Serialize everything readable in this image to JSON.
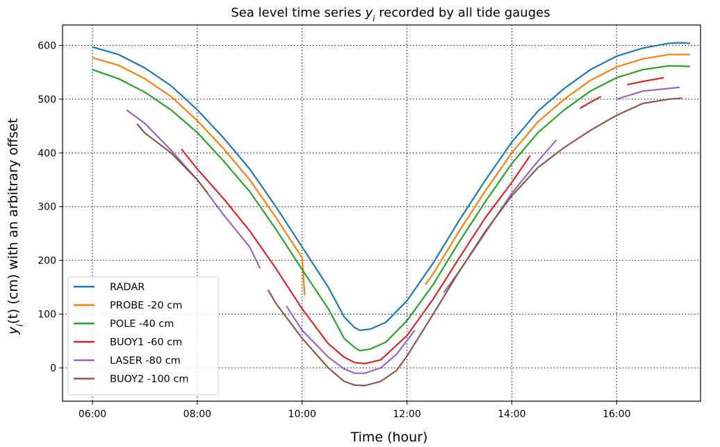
{
  "chart_data": {
    "type": "line",
    "title": "Sea level time series y_i recorded by all tide gauges",
    "title_prefix": "Sea level time series ",
    "title_symbol": "y",
    "title_subscript": "i",
    "title_suffix": " recorded by all tide gauges",
    "xlabel": "Time (hour)",
    "ylabel": "y_i(t) (cm) with an arbitrary offset",
    "ylabel_parts": {
      "symbol": "y",
      "subscript": "i",
      "rest": "(t) (cm) with an arbitrary offset"
    },
    "xlim": [
      5.43,
      17.6
    ],
    "ylim": [
      -62,
      638
    ],
    "x_ticks": [
      {
        "value": 6,
        "label": "06:00"
      },
      {
        "value": 8,
        "label": "08:00"
      },
      {
        "value": 10,
        "label": "10:00"
      },
      {
        "value": 12,
        "label": "12:00"
      },
      {
        "value": 14,
        "label": "14:00"
      },
      {
        "value": 16,
        "label": "16:00"
      }
    ],
    "y_ticks": [
      {
        "value": 0,
        "label": "0"
      },
      {
        "value": 100,
        "label": "100"
      },
      {
        "value": 200,
        "label": "200"
      },
      {
        "value": 300,
        "label": "300"
      },
      {
        "value": 400,
        "label": "400"
      },
      {
        "value": 500,
        "label": "500"
      },
      {
        "value": 600,
        "label": "600"
      }
    ],
    "grid": true,
    "grid_style": "dotted",
    "legend_position": "lower-left",
    "series": [
      {
        "name": "RADAR",
        "color": "#1f77b4",
        "segments": [
          [
            [
              6.0,
              597
            ],
            [
              6.5,
              583
            ],
            [
              7.0,
              558
            ],
            [
              7.5,
              525
            ],
            [
              8.0,
              480
            ],
            [
              8.5,
              428
            ],
            [
              9.0,
              370
            ],
            [
              9.5,
              300
            ],
            [
              10.0,
              225
            ],
            [
              10.5,
              150
            ],
            [
              10.8,
              95
            ],
            [
              11.0,
              75
            ],
            [
              11.1,
              70
            ],
            [
              11.3,
              72
            ],
            [
              11.6,
              85
            ],
            [
              12.0,
              125
            ],
            [
              12.5,
              195
            ],
            [
              13.0,
              275
            ],
            [
              13.5,
              350
            ],
            [
              14.0,
              420
            ],
            [
              14.5,
              478
            ],
            [
              15.0,
              520
            ],
            [
              15.5,
              555
            ],
            [
              16.0,
              580
            ],
            [
              16.5,
              595
            ],
            [
              17.0,
              604
            ],
            [
              17.2,
              605
            ],
            [
              17.4,
              604
            ]
          ]
        ]
      },
      {
        "name": "PROBE -20 cm",
        "color": "#ff7f0e",
        "segments": [
          [
            [
              6.0,
              577
            ],
            [
              6.5,
              563
            ],
            [
              7.0,
              538
            ],
            [
              7.5,
              505
            ],
            [
              8.0,
              460
            ],
            [
              8.5,
              408
            ],
            [
              9.0,
              350
            ],
            [
              9.5,
              280
            ],
            [
              10.0,
              205
            ],
            [
              10.05,
              135
            ]
          ],
          [
            [
              12.35,
              155
            ],
            [
              12.5,
              175
            ],
            [
              13.0,
              255
            ],
            [
              13.5,
              330
            ],
            [
              14.0,
              400
            ],
            [
              14.5,
              458
            ],
            [
              15.0,
              500
            ],
            [
              15.5,
              535
            ],
            [
              16.0,
              560
            ],
            [
              16.5,
              575
            ],
            [
              17.0,
              583
            ],
            [
              17.4,
              583
            ]
          ]
        ]
      },
      {
        "name": "POLE -40 cm",
        "color": "#2ca02c",
        "segments": [
          [
            [
              6.0,
              555
            ],
            [
              6.5,
              538
            ],
            [
              7.0,
              513
            ],
            [
              7.5,
              480
            ],
            [
              8.0,
              438
            ],
            [
              8.5,
              385
            ],
            [
              9.0,
              328
            ],
            [
              9.5,
              258
            ],
            [
              10.0,
              183
            ],
            [
              10.5,
              110
            ],
            [
              10.8,
              55
            ],
            [
              11.0,
              38
            ],
            [
              11.1,
              32
            ],
            [
              11.3,
              35
            ],
            [
              11.6,
              48
            ],
            [
              12.0,
              88
            ],
            [
              12.5,
              155
            ],
            [
              13.0,
              235
            ],
            [
              13.5,
              310
            ],
            [
              14.0,
              380
            ],
            [
              14.5,
              438
            ],
            [
              15.0,
              480
            ],
            [
              15.5,
              515
            ],
            [
              16.0,
              540
            ],
            [
              16.5,
              555
            ],
            [
              17.0,
              562
            ],
            [
              17.4,
              561
            ]
          ]
        ]
      },
      {
        "name": "BUOY1 -60 cm",
        "color": "#d62728",
        "segments": [
          [
            [
              7.7,
              407
            ],
            [
              8.0,
              370
            ],
            [
              8.5,
              315
            ],
            [
              9.0,
              255
            ],
            [
              9.5,
              185
            ],
            [
              10.0,
              110
            ],
            [
              10.5,
              45
            ],
            [
              10.8,
              20
            ],
            [
              11.0,
              10
            ],
            [
              11.2,
              8
            ],
            [
              11.5,
              15
            ],
            [
              12.0,
              60
            ],
            [
              12.5,
              128
            ],
            [
              13.0,
              205
            ],
            [
              13.5,
              280
            ],
            [
              14.0,
              345
            ],
            [
              14.35,
              395
            ]
          ],
          [
            [
              15.3,
              483
            ],
            [
              15.7,
              505
            ]
          ],
          [
            [
              16.2,
              527
            ],
            [
              16.5,
              533
            ],
            [
              16.9,
              540
            ]
          ]
        ]
      },
      {
        "name": "LASER -80 cm",
        "color": "#9467bd",
        "segments": [
          [
            [
              6.65,
              480
            ],
            [
              7.0,
              455
            ],
            [
              7.5,
              405
            ],
            [
              8.0,
              350
            ],
            [
              8.5,
              285
            ],
            [
              9.0,
              225
            ],
            [
              9.2,
              185
            ]
          ],
          [
            [
              9.7,
              115
            ],
            [
              10.0,
              70
            ],
            [
              10.5,
              20
            ],
            [
              10.8,
              -2
            ],
            [
              11.0,
              -10
            ],
            [
              11.2,
              -10
            ],
            [
              11.5,
              0
            ],
            [
              11.8,
              25
            ],
            [
              12.15,
              70
            ]
          ],
          [
            [
              12.7,
              140
            ],
            [
              13.0,
              180
            ],
            [
              13.5,
              252
            ],
            [
              14.0,
              325
            ],
            [
              14.5,
              385
            ],
            [
              14.85,
              424
            ]
          ],
          [
            [
              16.0,
              500
            ],
            [
              16.5,
              515
            ],
            [
              17.0,
              520
            ],
            [
              17.2,
              522
            ]
          ]
        ]
      },
      {
        "name": "BUOY2 -100 cm",
        "color": "#8c564b",
        "segments": [
          [
            [
              6.85,
              454
            ],
            [
              7.0,
              437
            ],
            [
              7.5,
              400
            ],
            [
              8.0,
              350
            ],
            [
              8.2,
              325
            ]
          ],
          [
            [
              9.35,
              145
            ],
            [
              9.5,
              120
            ],
            [
              10.0,
              55
            ],
            [
              10.5,
              0
            ],
            [
              10.8,
              -25
            ],
            [
              11.0,
              -32
            ],
            [
              11.2,
              -33
            ],
            [
              11.5,
              -25
            ],
            [
              11.8,
              -5
            ],
            [
              12.0,
              22
            ],
            [
              12.5,
              100
            ],
            [
              13.0,
              180
            ],
            [
              13.5,
              255
            ],
            [
              14.0,
              320
            ],
            [
              14.5,
              373
            ],
            [
              15.0,
              410
            ],
            [
              15.5,
              442
            ],
            [
              16.0,
              470
            ],
            [
              16.5,
              492
            ],
            [
              17.0,
              500
            ],
            [
              17.25,
              502
            ]
          ]
        ]
      }
    ]
  }
}
